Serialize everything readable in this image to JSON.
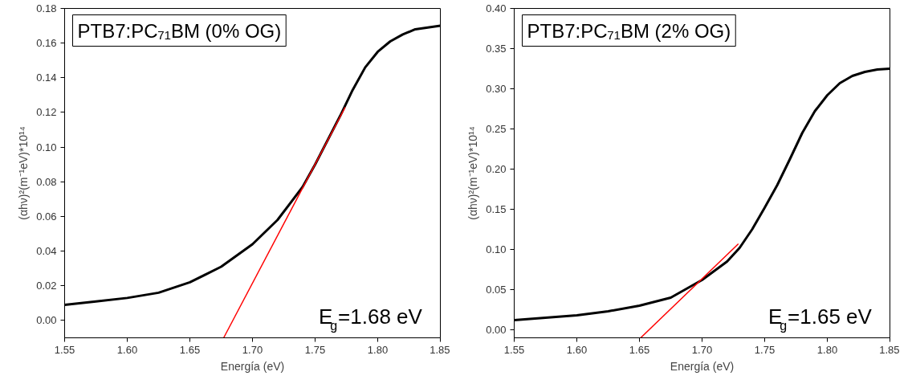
{
  "chart_data": [
    {
      "type": "line",
      "title": "PTB7:PC₇₁BM (0% OG)",
      "xlabel": "Energía (eV)",
      "ylabel": "(αhν)²(m⁻¹eV)*10¹⁴",
      "annotations": [
        "E$_{g}$=1.68 eV"
      ],
      "x": [
        1.55,
        1.575,
        1.6,
        1.625,
        1.65,
        1.675,
        1.7,
        1.72,
        1.74,
        1.75,
        1.76,
        1.77,
        1.78,
        1.79,
        1.8,
        1.81,
        1.82,
        1.83,
        1.84,
        1.85
      ],
      "series": [
        {
          "color": "#000000",
          "values": [
            0.009,
            0.011,
            0.013,
            0.016,
            0.022,
            0.031,
            0.044,
            0.058,
            0.077,
            0.09,
            0.104,
            0.118,
            0.133,
            0.146,
            0.155,
            0.161,
            0.165,
            0.168,
            0.169,
            0.17
          ]
        },
        {
          "color": "#ff0000",
          "x": [
            1.677,
            1.774
          ],
          "values": [
            -0.01,
            0.123
          ]
        }
      ],
      "xlim": [
        1.55,
        1.85
      ],
      "xticks": [
        {
          "value": 1.55,
          "label": "1.55"
        },
        {
          "value": 1.6,
          "label": "1.60"
        },
        {
          "value": 1.65,
          "label": "1.65"
        },
        {
          "value": 1.7,
          "label": "1.70"
        },
        {
          "value": 1.75,
          "label": "1.75"
        },
        {
          "value": 1.8,
          "label": "1.80"
        },
        {
          "value": 1.85,
          "label": "1.85"
        }
      ],
      "ylim": [
        -0.01,
        0.18
      ],
      "yticks": [
        {
          "value": 0,
          "label": "0.00"
        },
        {
          "value": 0.02,
          "label": "0.02"
        },
        {
          "value": 0.04,
          "label": "0.04"
        },
        {
          "value": 0.06,
          "label": "0.06"
        },
        {
          "value": 0.08,
          "label": "0.08"
        },
        {
          "value": 0.1,
          "label": "0.10"
        },
        {
          "value": 0.12,
          "label": "0.12"
        },
        {
          "value": 0.14,
          "label": "0.14"
        },
        {
          "value": 0.16,
          "label": "0.16"
        },
        {
          "value": 0.18,
          "label": "0.18"
        }
      ]
    },
    {
      "type": "line",
      "title": "PTB7:PC₇₁BM (2% OG)",
      "xlabel": "Energía (eV)",
      "ylabel": "(αhν)²(m⁻¹eV)*10¹⁴",
      "annotations": [
        "E$_{g}$=1.65 eV"
      ],
      "x": [
        1.55,
        1.575,
        1.6,
        1.625,
        1.65,
        1.675,
        1.7,
        1.72,
        1.73,
        1.74,
        1.75,
        1.76,
        1.77,
        1.78,
        1.79,
        1.8,
        1.81,
        1.82,
        1.83,
        1.84,
        1.85
      ],
      "series": [
        {
          "color": "#000000",
          "values": [
            0.012,
            0.015,
            0.018,
            0.023,
            0.03,
            0.04,
            0.062,
            0.085,
            0.102,
            0.125,
            0.152,
            0.18,
            0.212,
            0.245,
            0.272,
            0.292,
            0.307,
            0.316,
            0.321,
            0.324,
            0.325
          ]
        },
        {
          "color": "#ff0000",
          "x": [
            1.651,
            1.729
          ],
          "values": [
            -0.01,
            0.107
          ]
        }
      ],
      "xlim": [
        1.55,
        1.85
      ],
      "xticks": [
        {
          "value": 1.55,
          "label": "1.55"
        },
        {
          "value": 1.6,
          "label": "1.60"
        },
        {
          "value": 1.65,
          "label": "1.65"
        },
        {
          "value": 1.7,
          "label": "1.70"
        },
        {
          "value": 1.75,
          "label": "1.75"
        },
        {
          "value": 1.8,
          "label": "1.80"
        },
        {
          "value": 1.85,
          "label": "1.85"
        }
      ],
      "ylim": [
        -0.01,
        0.4
      ],
      "yticks": [
        {
          "value": 0,
          "label": "0.00"
        },
        {
          "value": 0.05,
          "label": "0.05"
        },
        {
          "value": 0.1,
          "label": "0.10"
        },
        {
          "value": 0.15,
          "label": "0.15"
        },
        {
          "value": 0.2,
          "label": "0.20"
        },
        {
          "value": 0.25,
          "label": "0.25"
        },
        {
          "value": 0.3,
          "label": "0.30"
        },
        {
          "value": 0.35,
          "label": "0.35"
        },
        {
          "value": 0.4,
          "label": "0.40"
        }
      ]
    }
  ]
}
